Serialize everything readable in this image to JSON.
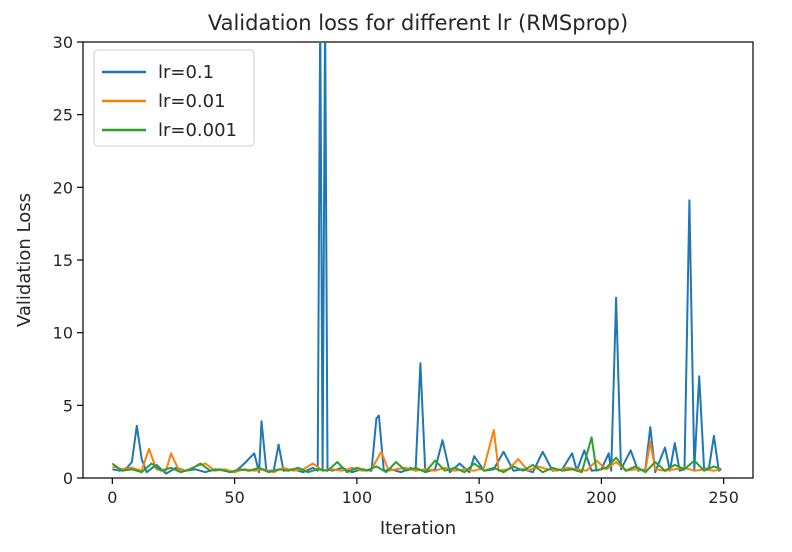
{
  "chart_data": {
    "type": "line",
    "title": "Validation loss for different lr (RMSprop)",
    "xlabel": "Iteration",
    "ylabel": "Validation Loss",
    "xlim": [
      -12,
      262
    ],
    "ylim": [
      0,
      30
    ],
    "xticks": [
      0,
      50,
      100,
      150,
      200,
      250
    ],
    "yticks": [
      0,
      5,
      10,
      15,
      20,
      25,
      30
    ],
    "grid": false,
    "legend_position": "top-left",
    "series": [
      {
        "name": "lr=0.1",
        "color": "#1f77b4",
        "points": [
          [
            0,
            0.6
          ],
          [
            3,
            0.5
          ],
          [
            6,
            0.7
          ],
          [
            8,
            1.1
          ],
          [
            10,
            3.6
          ],
          [
            12,
            1.3
          ],
          [
            14,
            0.4
          ],
          [
            18,
            0.9
          ],
          [
            22,
            0.3
          ],
          [
            26,
            0.7
          ],
          [
            30,
            0.5
          ],
          [
            34,
            0.6
          ],
          [
            38,
            0.4
          ],
          [
            42,
            0.6
          ],
          [
            46,
            0.5
          ],
          [
            50,
            0.4
          ],
          [
            54,
            1.0
          ],
          [
            58,
            1.7
          ],
          [
            60,
            0.4
          ],
          [
            61,
            3.9
          ],
          [
            63,
            0.5
          ],
          [
            66,
            0.5
          ],
          [
            68,
            2.3
          ],
          [
            70,
            0.5
          ],
          [
            74,
            0.6
          ],
          [
            78,
            0.4
          ],
          [
            82,
            0.7
          ],
          [
            84,
            0.5
          ],
          [
            85,
            32
          ],
          [
            86,
            0.5
          ],
          [
            87,
            32
          ],
          [
            88,
            0.6
          ],
          [
            90,
            0.5
          ],
          [
            94,
            0.7
          ],
          [
            98,
            0.4
          ],
          [
            102,
            0.6
          ],
          [
            106,
            0.5
          ],
          [
            108,
            4.1
          ],
          [
            109,
            4.3
          ],
          [
            111,
            0.5
          ],
          [
            114,
            0.6
          ],
          [
            118,
            0.4
          ],
          [
            122,
            0.7
          ],
          [
            124,
            0.5
          ],
          [
            126,
            7.9
          ],
          [
            128,
            0.4
          ],
          [
            132,
            0.6
          ],
          [
            135,
            2.6
          ],
          [
            138,
            0.4
          ],
          [
            142,
            1.0
          ],
          [
            146,
            0.4
          ],
          [
            148,
            1.5
          ],
          [
            152,
            0.5
          ],
          [
            156,
            0.6
          ],
          [
            160,
            1.8
          ],
          [
            164,
            0.5
          ],
          [
            168,
            0.6
          ],
          [
            172,
            0.4
          ],
          [
            176,
            1.8
          ],
          [
            180,
            0.5
          ],
          [
            184,
            0.6
          ],
          [
            188,
            1.7
          ],
          [
            190,
            0.5
          ],
          [
            193,
            1.9
          ],
          [
            196,
            0.5
          ],
          [
            200,
            0.6
          ],
          [
            203,
            1.7
          ],
          [
            204,
            0.5
          ],
          [
            206,
            12.4
          ],
          [
            208,
            0.6
          ],
          [
            212,
            1.9
          ],
          [
            215,
            0.5
          ],
          [
            218,
            0.6
          ],
          [
            220,
            3.5
          ],
          [
            222,
            0.4
          ],
          [
            226,
            2.1
          ],
          [
            228,
            0.5
          ],
          [
            230,
            2.4
          ],
          [
            232,
            0.5
          ],
          [
            234,
            0.6
          ],
          [
            236,
            19.1
          ],
          [
            238,
            0.6
          ],
          [
            240,
            7.0
          ],
          [
            242,
            0.6
          ],
          [
            244,
            0.7
          ],
          [
            246,
            2.9
          ],
          [
            248,
            0.5
          ],
          [
            249,
            0.6
          ]
        ]
      },
      {
        "name": "lr=0.01",
        "color": "#ff7f0e",
        "points": [
          [
            0,
            0.8
          ],
          [
            4,
            0.6
          ],
          [
            8,
            0.7
          ],
          [
            12,
            0.5
          ],
          [
            15,
            2.0
          ],
          [
            18,
            0.6
          ],
          [
            22,
            0.5
          ],
          [
            24,
            1.7
          ],
          [
            27,
            0.6
          ],
          [
            30,
            0.5
          ],
          [
            34,
            0.8
          ],
          [
            38,
            1.0
          ],
          [
            42,
            0.5
          ],
          [
            46,
            0.6
          ],
          [
            50,
            0.4
          ],
          [
            54,
            0.6
          ],
          [
            58,
            0.5
          ],
          [
            62,
            0.6
          ],
          [
            66,
            0.4
          ],
          [
            70,
            0.7
          ],
          [
            74,
            0.5
          ],
          [
            78,
            0.6
          ],
          [
            82,
            1.0
          ],
          [
            86,
            0.5
          ],
          [
            90,
            0.6
          ],
          [
            94,
            0.5
          ],
          [
            98,
            0.7
          ],
          [
            102,
            0.5
          ],
          [
            106,
            0.6
          ],
          [
            110,
            1.8
          ],
          [
            113,
            0.5
          ],
          [
            116,
            0.6
          ],
          [
            120,
            0.7
          ],
          [
            124,
            0.5
          ],
          [
            128,
            0.6
          ],
          [
            132,
            0.5
          ],
          [
            136,
            0.7
          ],
          [
            140,
            0.5
          ],
          [
            144,
            0.6
          ],
          [
            148,
            0.5
          ],
          [
            152,
            0.7
          ],
          [
            156,
            3.3
          ],
          [
            158,
            0.5
          ],
          [
            162,
            0.6
          ],
          [
            166,
            1.3
          ],
          [
            170,
            0.5
          ],
          [
            174,
            0.8
          ],
          [
            178,
            0.6
          ],
          [
            182,
            0.5
          ],
          [
            186,
            0.7
          ],
          [
            190,
            0.6
          ],
          [
            194,
            0.5
          ],
          [
            198,
            1.2
          ],
          [
            202,
            0.6
          ],
          [
            206,
            1.1
          ],
          [
            210,
            0.5
          ],
          [
            214,
            0.6
          ],
          [
            218,
            0.5
          ],
          [
            220,
            2.5
          ],
          [
            222,
            0.6
          ],
          [
            226,
            0.5
          ],
          [
            230,
            0.6
          ],
          [
            234,
            0.7
          ],
          [
            238,
            0.5
          ],
          [
            242,
            0.6
          ],
          [
            246,
            0.5
          ],
          [
            249,
            0.6
          ]
        ]
      },
      {
        "name": "lr=0.001",
        "color": "#2ca02c",
        "points": [
          [
            0,
            1.0
          ],
          [
            4,
            0.5
          ],
          [
            8,
            0.6
          ],
          [
            12,
            0.4
          ],
          [
            16,
            1.0
          ],
          [
            20,
            0.5
          ],
          [
            24,
            0.7
          ],
          [
            28,
            0.4
          ],
          [
            32,
            0.6
          ],
          [
            36,
            1.0
          ],
          [
            40,
            0.5
          ],
          [
            44,
            0.6
          ],
          [
            48,
            0.4
          ],
          [
            52,
            0.6
          ],
          [
            56,
            0.5
          ],
          [
            60,
            0.7
          ],
          [
            64,
            0.4
          ],
          [
            68,
            0.6
          ],
          [
            72,
            0.5
          ],
          [
            76,
            0.7
          ],
          [
            80,
            0.4
          ],
          [
            84,
            0.6
          ],
          [
            88,
            0.5
          ],
          [
            92,
            1.1
          ],
          [
            96,
            0.4
          ],
          [
            100,
            0.7
          ],
          [
            104,
            0.5
          ],
          [
            108,
            0.8
          ],
          [
            112,
            0.4
          ],
          [
            116,
            1.1
          ],
          [
            120,
            0.5
          ],
          [
            124,
            0.7
          ],
          [
            128,
            0.4
          ],
          [
            132,
            1.2
          ],
          [
            136,
            0.5
          ],
          [
            140,
            0.7
          ],
          [
            144,
            0.4
          ],
          [
            148,
            1.0
          ],
          [
            152,
            0.5
          ],
          [
            156,
            0.7
          ],
          [
            160,
            0.4
          ],
          [
            164,
            0.8
          ],
          [
            168,
            0.5
          ],
          [
            172,
            0.9
          ],
          [
            176,
            0.4
          ],
          [
            180,
            0.7
          ],
          [
            184,
            0.5
          ],
          [
            188,
            0.6
          ],
          [
            192,
            0.4
          ],
          [
            196,
            2.8
          ],
          [
            198,
            0.5
          ],
          [
            202,
            0.7
          ],
          [
            206,
            1.4
          ],
          [
            210,
            0.5
          ],
          [
            214,
            0.8
          ],
          [
            218,
            0.4
          ],
          [
            222,
            1.1
          ],
          [
            226,
            0.5
          ],
          [
            230,
            0.9
          ],
          [
            234,
            0.6
          ],
          [
            238,
            1.2
          ],
          [
            242,
            0.5
          ],
          [
            246,
            0.8
          ],
          [
            249,
            0.6
          ]
        ]
      }
    ]
  }
}
